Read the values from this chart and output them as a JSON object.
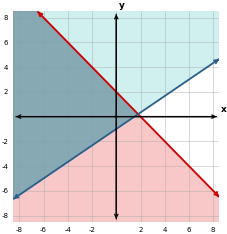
{
  "xlim": [
    -8.5,
    8.5
  ],
  "ylim": [
    -8.5,
    8.5
  ],
  "xticks": [
    -8,
    -6,
    -4,
    -2,
    0,
    2,
    4,
    6,
    8
  ],
  "yticks": [
    -8,
    -6,
    -4,
    -2,
    0,
    2,
    4,
    6,
    8
  ],
  "m1": -1,
  "b1": 2,
  "m2": 0.66667,
  "b2": -1,
  "color_red": "#d00000",
  "color_blue": "#2e5f8a",
  "color_pink": "#f8c8c8",
  "color_cyan": "#d0f0f0",
  "color_grey": "#7a9daa",
  "xlabel": "x",
  "ylabel": "y",
  "figsize": [
    2.28,
    2.34
  ],
  "dpi": 100
}
